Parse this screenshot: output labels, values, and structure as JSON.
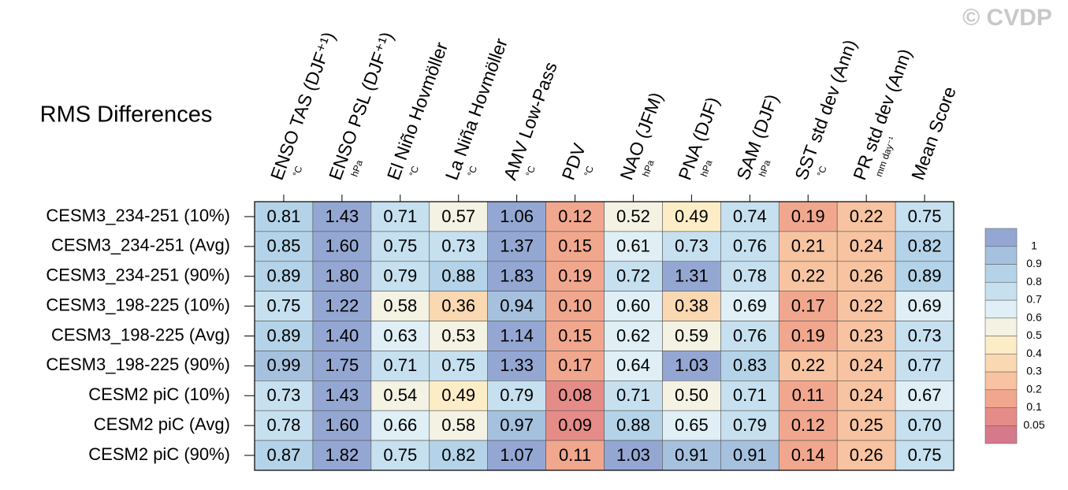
{
  "chart_data": {
    "type": "heatmap",
    "title": "RMS Differences",
    "watermark": "© CVDP",
    "categories": [
      "ENSO TAS (DJF⁺¹)",
      "ENSO PSL (DJF⁺¹)",
      "El Niño Hovmöller",
      "La Niña Hovmöller",
      "AMV Low-Pass",
      "PDV",
      "NAO (JFM)",
      "PNA (DJF)",
      "SAM (DJF)",
      "SST std dev (Ann)",
      "PR std dev (Ann)",
      "Mean Score"
    ],
    "units": [
      "°C",
      "hPa",
      "°C",
      "°C",
      "°C",
      "°C",
      "hPa",
      "hPa",
      "hPa",
      "°C",
      "mm day⁻¹",
      null
    ],
    "rows": [
      "CESM3_234-251 (10%)",
      "CESM3_234-251 (Avg)",
      "CESM3_234-251 (90%)",
      "CESM3_198-225 (10%)",
      "CESM3_198-225 (Avg)",
      "CESM3_198-225 (90%)",
      "CESM2 piC (10%)",
      "CESM2 piC (Avg)",
      "CESM2 piC (90%)"
    ],
    "values": [
      [
        0.81,
        1.43,
        0.71,
        0.57,
        1.06,
        0.12,
        0.52,
        0.49,
        0.74,
        0.19,
        0.22,
        0.75
      ],
      [
        0.85,
        1.6,
        0.75,
        0.73,
        1.37,
        0.15,
        0.61,
        0.73,
        0.76,
        0.21,
        0.24,
        0.82
      ],
      [
        0.89,
        1.8,
        0.79,
        0.88,
        1.83,
        0.19,
        0.72,
        1.31,
        0.78,
        0.22,
        0.26,
        0.89
      ],
      [
        0.75,
        1.22,
        0.58,
        0.36,
        0.94,
        0.1,
        0.6,
        0.38,
        0.69,
        0.17,
        0.22,
        0.69
      ],
      [
        0.89,
        1.4,
        0.63,
        0.53,
        1.14,
        0.15,
        0.62,
        0.59,
        0.76,
        0.19,
        0.23,
        0.73
      ],
      [
        0.99,
        1.75,
        0.71,
        0.75,
        1.33,
        0.17,
        0.64,
        1.03,
        0.83,
        0.22,
        0.24,
        0.77
      ],
      [
        0.73,
        1.43,
        0.54,
        0.49,
        0.79,
        0.08,
        0.71,
        0.5,
        0.71,
        0.11,
        0.24,
        0.67
      ],
      [
        0.78,
        1.6,
        0.66,
        0.58,
        0.97,
        0.09,
        0.88,
        0.65,
        0.79,
        0.12,
        0.25,
        0.7
      ],
      [
        0.87,
        1.82,
        0.75,
        0.82,
        1.07,
        0.11,
        1.03,
        0.91,
        0.91,
        0.14,
        0.26,
        0.75
      ]
    ],
    "value_labels": [
      [
        "0.81",
        "1.43",
        "0.71",
        "0.57",
        "1.06",
        "0.12",
        "0.52",
        "0.49",
        "0.74",
        "0.19",
        "0.22",
        "0.75"
      ],
      [
        "0.85",
        "1.60",
        "0.75",
        "0.73",
        "1.37",
        "0.15",
        "0.61",
        "0.73",
        "0.76",
        "0.21",
        "0.24",
        "0.82"
      ],
      [
        "0.89",
        "1.80",
        "0.79",
        "0.88",
        "1.83",
        "0.19",
        "0.72",
        "1.31",
        "0.78",
        "0.22",
        "0.26",
        "0.89"
      ],
      [
        "0.75",
        "1.22",
        "0.58",
        "0.36",
        "0.94",
        "0.10",
        "0.60",
        "0.38",
        "0.69",
        "0.17",
        "0.22",
        "0.69"
      ],
      [
        "0.89",
        "1.40",
        "0.63",
        "0.53",
        "1.14",
        "0.15",
        "0.62",
        "0.59",
        "0.76",
        "0.19",
        "0.23",
        "0.73"
      ],
      [
        "0.99",
        "1.75",
        "0.71",
        "0.75",
        "1.33",
        "0.17",
        "0.64",
        "1.03",
        "0.83",
        "0.22",
        "0.24",
        "0.77"
      ],
      [
        "0.73",
        "1.43",
        "0.54",
        "0.49",
        "0.79",
        "0.08",
        "0.71",
        "0.50",
        "0.71",
        "0.11",
        "0.24",
        "0.67"
      ],
      [
        "0.78",
        "1.60",
        "0.66",
        "0.58",
        "0.97",
        "0.09",
        "0.88",
        "0.65",
        "0.79",
        "0.12",
        "0.25",
        "0.70"
      ],
      [
        "0.87",
        "1.82",
        "0.75",
        "0.82",
        "1.07",
        "0.11",
        "1.03",
        "0.91",
        "0.91",
        "0.14",
        "0.26",
        "0.75"
      ]
    ],
    "colorbar": {
      "levels": [
        0.05,
        0.1,
        0.2,
        0.3,
        0.4,
        0.5,
        0.6,
        0.7,
        0.8,
        0.9,
        1
      ],
      "colors": [
        "#d6798a",
        "#e68c88",
        "#f1a78e",
        "#f7c3a0",
        "#fad8b2",
        "#fdedc7",
        "#f3f2e3",
        "#dfeff5",
        "#c6e0ef",
        "#b4d3e8",
        "#a5c1de",
        "#94a7d3"
      ]
    }
  }
}
